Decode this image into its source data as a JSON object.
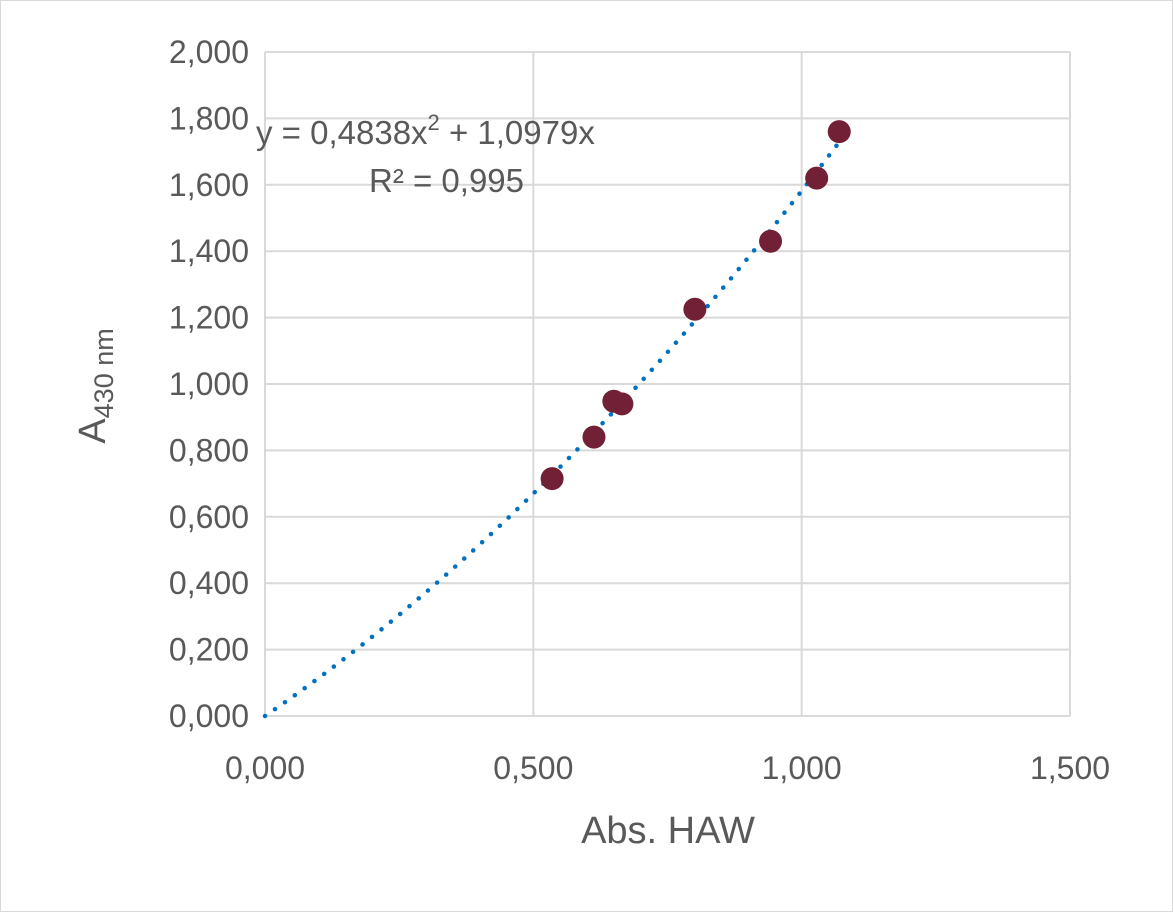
{
  "chart_data": {
    "type": "scatter",
    "title": "",
    "xlabel": "Abs. HAW",
    "ylabel": {
      "main": "A",
      "subscript": "430 nm"
    },
    "xlim": [
      0,
      1.5
    ],
    "ylim": [
      0,
      2
    ],
    "x_ticks": [
      0,
      0.5,
      1.0,
      1.5
    ],
    "x_tick_labels": [
      "0,000",
      "0,500",
      "1,000",
      "1,500"
    ],
    "y_ticks": [
      0,
      0.2,
      0.4,
      0.6,
      0.8,
      1.0,
      1.2,
      1.4,
      1.6,
      1.8,
      2.0
    ],
    "y_tick_labels": [
      "0,000",
      "0,200",
      "0,400",
      "0,600",
      "0,800",
      "1,000",
      "1,200",
      "1,400",
      "1,600",
      "1,800",
      "2,000"
    ],
    "grid": true,
    "legend": "none",
    "series": [
      {
        "marker_color": "#722036",
        "points": [
          {
            "x": 0.535,
            "y": 0.715
          },
          {
            "x": 0.613,
            "y": 0.84
          },
          {
            "x": 0.65,
            "y": 0.948
          },
          {
            "x": 0.665,
            "y": 0.94
          },
          {
            "x": 0.801,
            "y": 1.225
          },
          {
            "x": 0.942,
            "y": 1.43
          },
          {
            "x": 1.028,
            "y": 1.62
          },
          {
            "x": 1.07,
            "y": 1.76
          }
        ]
      }
    ],
    "trendline": {
      "type": "polynomial",
      "order": 2,
      "coefficients": {
        "a": 0.4838,
        "b": 1.0979,
        "c": 0
      },
      "x_range": [
        0,
        1.07
      ],
      "color": "#0070c0",
      "style": "dotted",
      "equation_label": {
        "prefix": "y = 0,4838x",
        "exponent": "2",
        "suffix": " + 1,0979x"
      },
      "r2_label": "R² = 0,995"
    },
    "colors": {
      "gridline": "#d9d9d9",
      "text": "#595959"
    }
  }
}
